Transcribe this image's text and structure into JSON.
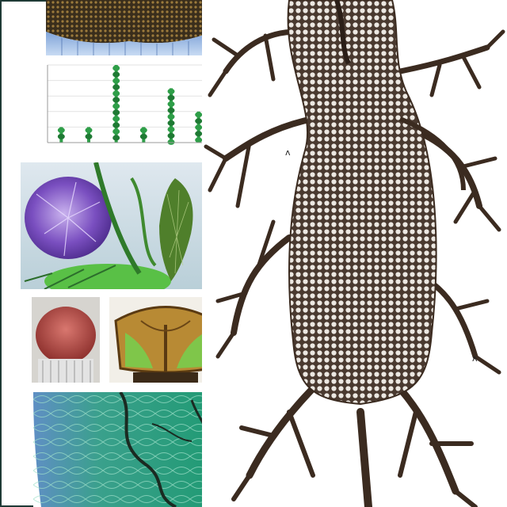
{
  "figure": {
    "marks": [
      "ʌ",
      "ʌ"
    ],
    "chart_tick_hint": "• • • • • •"
  },
  "chart_data": {
    "type": "bar",
    "categories": [
      "",
      "",
      "",
      "",
      "",
      ""
    ],
    "values": [
      2,
      2,
      10,
      2,
      7,
      4
    ],
    "title": "",
    "xlabel": "",
    "ylabel": "",
    "ylim": [
      0,
      10
    ],
    "grid": true
  },
  "colors": {
    "frame": "#1f3a36",
    "bar": "#2e9e48",
    "lace": "#e6e2dc",
    "twig": "#3b2b20",
    "sea": "#2a9f84",
    "violet": "#8a64c8"
  }
}
